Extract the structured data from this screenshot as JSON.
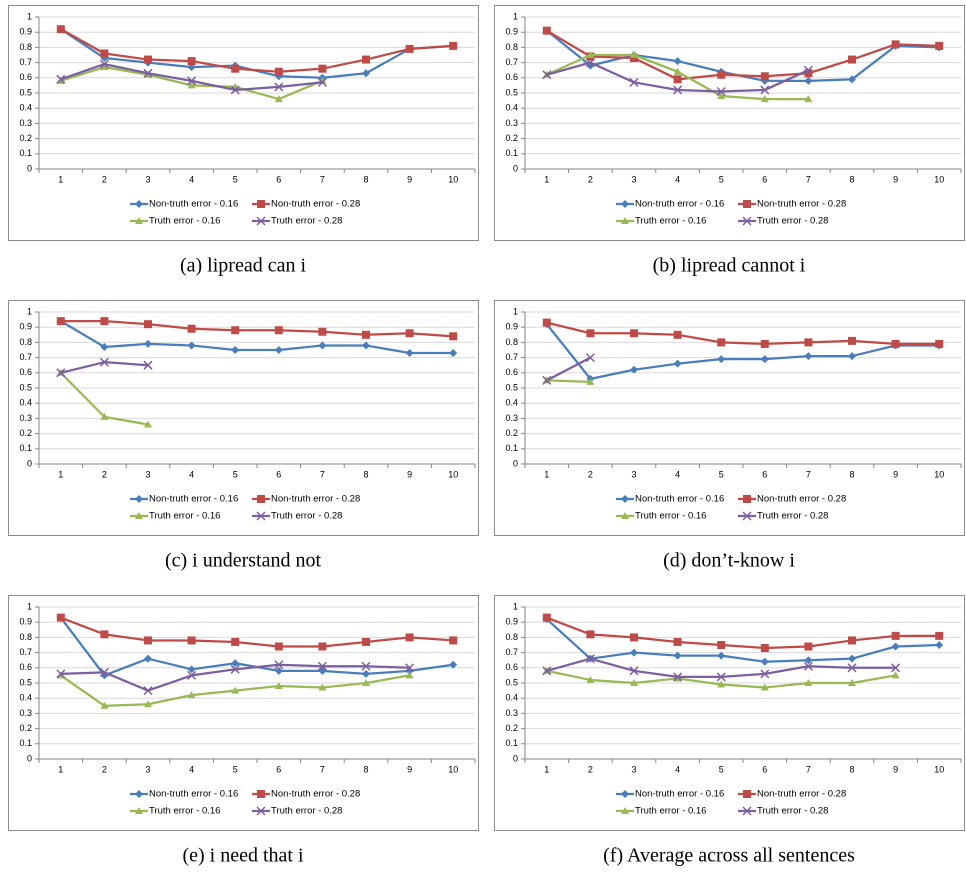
{
  "chart_data": [
    {
      "type": "line",
      "caption": "(a)  lipread can i",
      "categories": [
        "1",
        "2",
        "3",
        "4",
        "5",
        "6",
        "7",
        "8",
        "9",
        "10"
      ],
      "ylim": [
        0,
        1
      ],
      "yticks": [
        0,
        0.1,
        0.2,
        0.3,
        0.4,
        0.5,
        0.6,
        0.7,
        0.8,
        0.9,
        1
      ],
      "grid": true,
      "series": [
        {
          "name": "Non-truth error - 0.16",
          "color": "#4a7ebb",
          "marker": "diamond",
          "values": [
            0.92,
            0.73,
            0.7,
            0.67,
            0.68,
            0.61,
            0.6,
            0.63,
            0.79,
            0.81
          ]
        },
        {
          "name": "Non-truth error - 0.28",
          "color": "#be4b48",
          "marker": "square",
          "values": [
            0.92,
            0.76,
            0.72,
            0.71,
            0.66,
            0.64,
            0.66,
            0.72,
            0.79,
            0.81
          ]
        },
        {
          "name": "Truth error - 0.16",
          "color": "#98b954",
          "marker": "triangle",
          "values": [
            0.58,
            0.67,
            0.62,
            0.55,
            0.54,
            0.46,
            0.58,
            null,
            null,
            null
          ]
        },
        {
          "name": "Truth error - 0.28",
          "color": "#7d5fa0",
          "marker": "x",
          "values": [
            0.59,
            0.69,
            0.63,
            0.58,
            0.52,
            0.54,
            0.57,
            null,
            null,
            null
          ]
        }
      ]
    },
    {
      "type": "line",
      "caption": "(b)  lipread cannot i",
      "categories": [
        "1",
        "2",
        "3",
        "4",
        "5",
        "6",
        "7",
        "8",
        "9",
        "10"
      ],
      "ylim": [
        0,
        1
      ],
      "yticks": [
        0,
        0.1,
        0.2,
        0.3,
        0.4,
        0.5,
        0.6,
        0.7,
        0.8,
        0.9,
        1
      ],
      "grid": true,
      "series": [
        {
          "name": "Non-truth error - 0.16",
          "color": "#4a7ebb",
          "marker": "diamond",
          "values": [
            0.91,
            0.68,
            0.75,
            0.71,
            0.64,
            0.58,
            0.58,
            0.59,
            0.81,
            0.8
          ]
        },
        {
          "name": "Non-truth error - 0.28",
          "color": "#be4b48",
          "marker": "square",
          "values": [
            0.91,
            0.74,
            0.73,
            0.59,
            0.62,
            0.61,
            0.63,
            0.72,
            0.82,
            0.81
          ]
        },
        {
          "name": "Truth error - 0.16",
          "color": "#98b954",
          "marker": "triangle",
          "values": [
            0.62,
            0.75,
            0.75,
            0.64,
            0.48,
            0.46,
            0.46,
            null,
            null,
            null
          ]
        },
        {
          "name": "Truth error - 0.28",
          "color": "#7d5fa0",
          "marker": "x",
          "values": [
            0.62,
            0.7,
            0.57,
            0.52,
            0.51,
            0.52,
            0.65,
            null,
            null,
            null
          ]
        }
      ]
    },
    {
      "type": "line",
      "caption": "(c)  i understand not",
      "categories": [
        "1",
        "2",
        "3",
        "4",
        "5",
        "6",
        "7",
        "8",
        "9",
        "10"
      ],
      "ylim": [
        0,
        1
      ],
      "yticks": [
        0,
        0.1,
        0.2,
        0.3,
        0.4,
        0.5,
        0.6,
        0.7,
        0.8,
        0.9,
        1
      ],
      "grid": true,
      "series": [
        {
          "name": "Non-truth error - 0.16",
          "color": "#4a7ebb",
          "marker": "diamond",
          "values": [
            0.94,
            0.77,
            0.79,
            0.78,
            0.75,
            0.75,
            0.78,
            0.78,
            0.73,
            0.73
          ]
        },
        {
          "name": "Non-truth error - 0.28",
          "color": "#be4b48",
          "marker": "square",
          "values": [
            0.94,
            0.94,
            0.92,
            0.89,
            0.88,
            0.88,
            0.87,
            0.85,
            0.86,
            0.84
          ]
        },
        {
          "name": "Truth error - 0.16",
          "color": "#98b954",
          "marker": "triangle",
          "values": [
            0.6,
            0.31,
            0.26,
            null,
            null,
            null,
            null,
            null,
            null,
            null
          ]
        },
        {
          "name": "Truth error - 0.28",
          "color": "#7d5fa0",
          "marker": "x",
          "values": [
            0.6,
            0.67,
            0.65,
            null,
            null,
            null,
            null,
            null,
            null,
            null
          ]
        }
      ]
    },
    {
      "type": "line",
      "caption": "(d)  don’t-know i",
      "categories": [
        "1",
        "2",
        "3",
        "4",
        "5",
        "6",
        "7",
        "8",
        "9",
        "10"
      ],
      "ylim": [
        0,
        1
      ],
      "yticks": [
        0,
        0.1,
        0.2,
        0.3,
        0.4,
        0.5,
        0.6,
        0.7,
        0.8,
        0.9,
        1
      ],
      "grid": true,
      "series": [
        {
          "name": "Non-truth error - 0.16",
          "color": "#4a7ebb",
          "marker": "diamond",
          "values": [
            0.92,
            0.56,
            0.62,
            0.66,
            0.69,
            0.69,
            0.71,
            0.71,
            0.78,
            0.78
          ]
        },
        {
          "name": "Non-truth error - 0.28",
          "color": "#be4b48",
          "marker": "square",
          "values": [
            0.93,
            0.86,
            0.86,
            0.85,
            0.8,
            0.79,
            0.8,
            0.81,
            0.79,
            0.79
          ]
        },
        {
          "name": "Truth error - 0.16",
          "color": "#98b954",
          "marker": "triangle",
          "values": [
            0.55,
            0.54,
            null,
            null,
            null,
            null,
            null,
            null,
            null,
            null
          ]
        },
        {
          "name": "Truth error - 0.28",
          "color": "#7d5fa0",
          "marker": "x",
          "values": [
            0.55,
            0.7,
            null,
            null,
            null,
            null,
            null,
            null,
            null,
            null
          ]
        }
      ]
    },
    {
      "type": "line",
      "caption": "(e)  i need that i",
      "categories": [
        "1",
        "2",
        "3",
        "4",
        "5",
        "6",
        "7",
        "8",
        "9",
        "10"
      ],
      "ylim": [
        0,
        1
      ],
      "yticks": [
        0,
        0.1,
        0.2,
        0.3,
        0.4,
        0.5,
        0.6,
        0.7,
        0.8,
        0.9,
        1
      ],
      "grid": true,
      "series": [
        {
          "name": "Non-truth error - 0.16",
          "color": "#4a7ebb",
          "marker": "diamond",
          "values": [
            0.93,
            0.55,
            0.66,
            0.59,
            0.63,
            0.58,
            0.58,
            0.56,
            0.58,
            0.62
          ]
        },
        {
          "name": "Non-truth error - 0.28",
          "color": "#be4b48",
          "marker": "square",
          "values": [
            0.93,
            0.82,
            0.78,
            0.78,
            0.77,
            0.74,
            0.74,
            0.77,
            0.8,
            0.78
          ]
        },
        {
          "name": "Truth error - 0.16",
          "color": "#98b954",
          "marker": "triangle",
          "values": [
            0.55,
            0.35,
            0.36,
            0.42,
            0.45,
            0.48,
            0.47,
            0.5,
            0.55,
            null
          ]
        },
        {
          "name": "Truth error - 0.28",
          "color": "#7d5fa0",
          "marker": "x",
          "values": [
            0.56,
            0.57,
            0.45,
            0.55,
            0.59,
            0.62,
            0.61,
            0.61,
            0.6,
            null
          ]
        }
      ]
    },
    {
      "type": "line",
      "caption": "(f)  Average across all sentences",
      "categories": [
        "1",
        "2",
        "3",
        "4",
        "5",
        "6",
        "7",
        "8",
        "9",
        "10"
      ],
      "ylim": [
        0,
        1
      ],
      "yticks": [
        0,
        0.1,
        0.2,
        0.3,
        0.4,
        0.5,
        0.6,
        0.7,
        0.8,
        0.9,
        1
      ],
      "grid": true,
      "series": [
        {
          "name": "Non-truth error - 0.16",
          "color": "#4a7ebb",
          "marker": "diamond",
          "values": [
            0.92,
            0.66,
            0.7,
            0.68,
            0.68,
            0.64,
            0.65,
            0.66,
            0.74,
            0.75
          ]
        },
        {
          "name": "Non-truth error - 0.28",
          "color": "#be4b48",
          "marker": "square",
          "values": [
            0.93,
            0.82,
            0.8,
            0.77,
            0.75,
            0.73,
            0.74,
            0.78,
            0.81,
            0.81
          ]
        },
        {
          "name": "Truth error - 0.16",
          "color": "#98b954",
          "marker": "triangle",
          "values": [
            0.58,
            0.52,
            0.5,
            0.53,
            0.49,
            0.47,
            0.5,
            0.5,
            0.55,
            null
          ]
        },
        {
          "name": "Truth error - 0.28",
          "color": "#7d5fa0",
          "marker": "x",
          "values": [
            0.58,
            0.66,
            0.58,
            0.54,
            0.54,
            0.56,
            0.61,
            0.6,
            0.6,
            null
          ]
        }
      ]
    }
  ]
}
